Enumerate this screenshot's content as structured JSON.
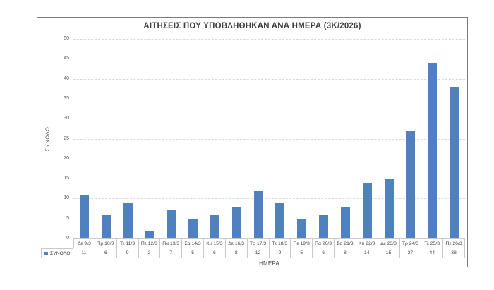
{
  "page": {
    "background_color": "#ffffff"
  },
  "chart_style": {
    "border_color": "#7d7d7d",
    "gridline_color": "#d9d9d9",
    "table_border_color": "#c9c9c9",
    "tick_label_color": "#595959",
    "title_color": "#3f3f3f",
    "bar_color": "#4e81bd"
  },
  "chart_data": {
    "type": "bar",
    "title": "ΑΙΤΗΣΕΙΣ ΠΟΥ ΥΠΟΒΛΗΘΗΚΑΝ ΑΝΑ ΗΜΕΡΑ (3Κ/2026)",
    "xlabel": "ΗΜΕΡΑ",
    "ylabel": "ΣΥΝΟΛΟ",
    "categories": [
      "Δε 9/3",
      "Τρ 10/3",
      "Τε 11/3",
      "Πε 12/3",
      "Πα 13/3",
      "Σα 14/3",
      "Κυ 15/3",
      "Δε 16/3",
      "Τρ 17/3",
      "Τε 18/3",
      "Πε 19/3",
      "Πα 20/3",
      "Σα 21/3",
      "Κυ 22/3",
      "Δε 23/3",
      "Τρ 24/3",
      "Τε 25/3",
      "Πε 26/3"
    ],
    "series": [
      {
        "name": "ΣΥΝΟΛΟ",
        "color": "#4e81bd",
        "values": [
          11,
          6,
          9,
          2,
          7,
          5,
          6,
          8,
          12,
          9,
          5,
          6,
          8,
          14,
          15,
          27,
          44,
          38
        ]
      }
    ],
    "ylim": [
      0,
      50
    ],
    "ytick_step": 5,
    "yticks": [
      0,
      5,
      10,
      15,
      20,
      25,
      30,
      35,
      40,
      45,
      50
    ],
    "grid": "horizontal-dashed",
    "legend_position": "data-table-left",
    "data_table_shown": true
  }
}
